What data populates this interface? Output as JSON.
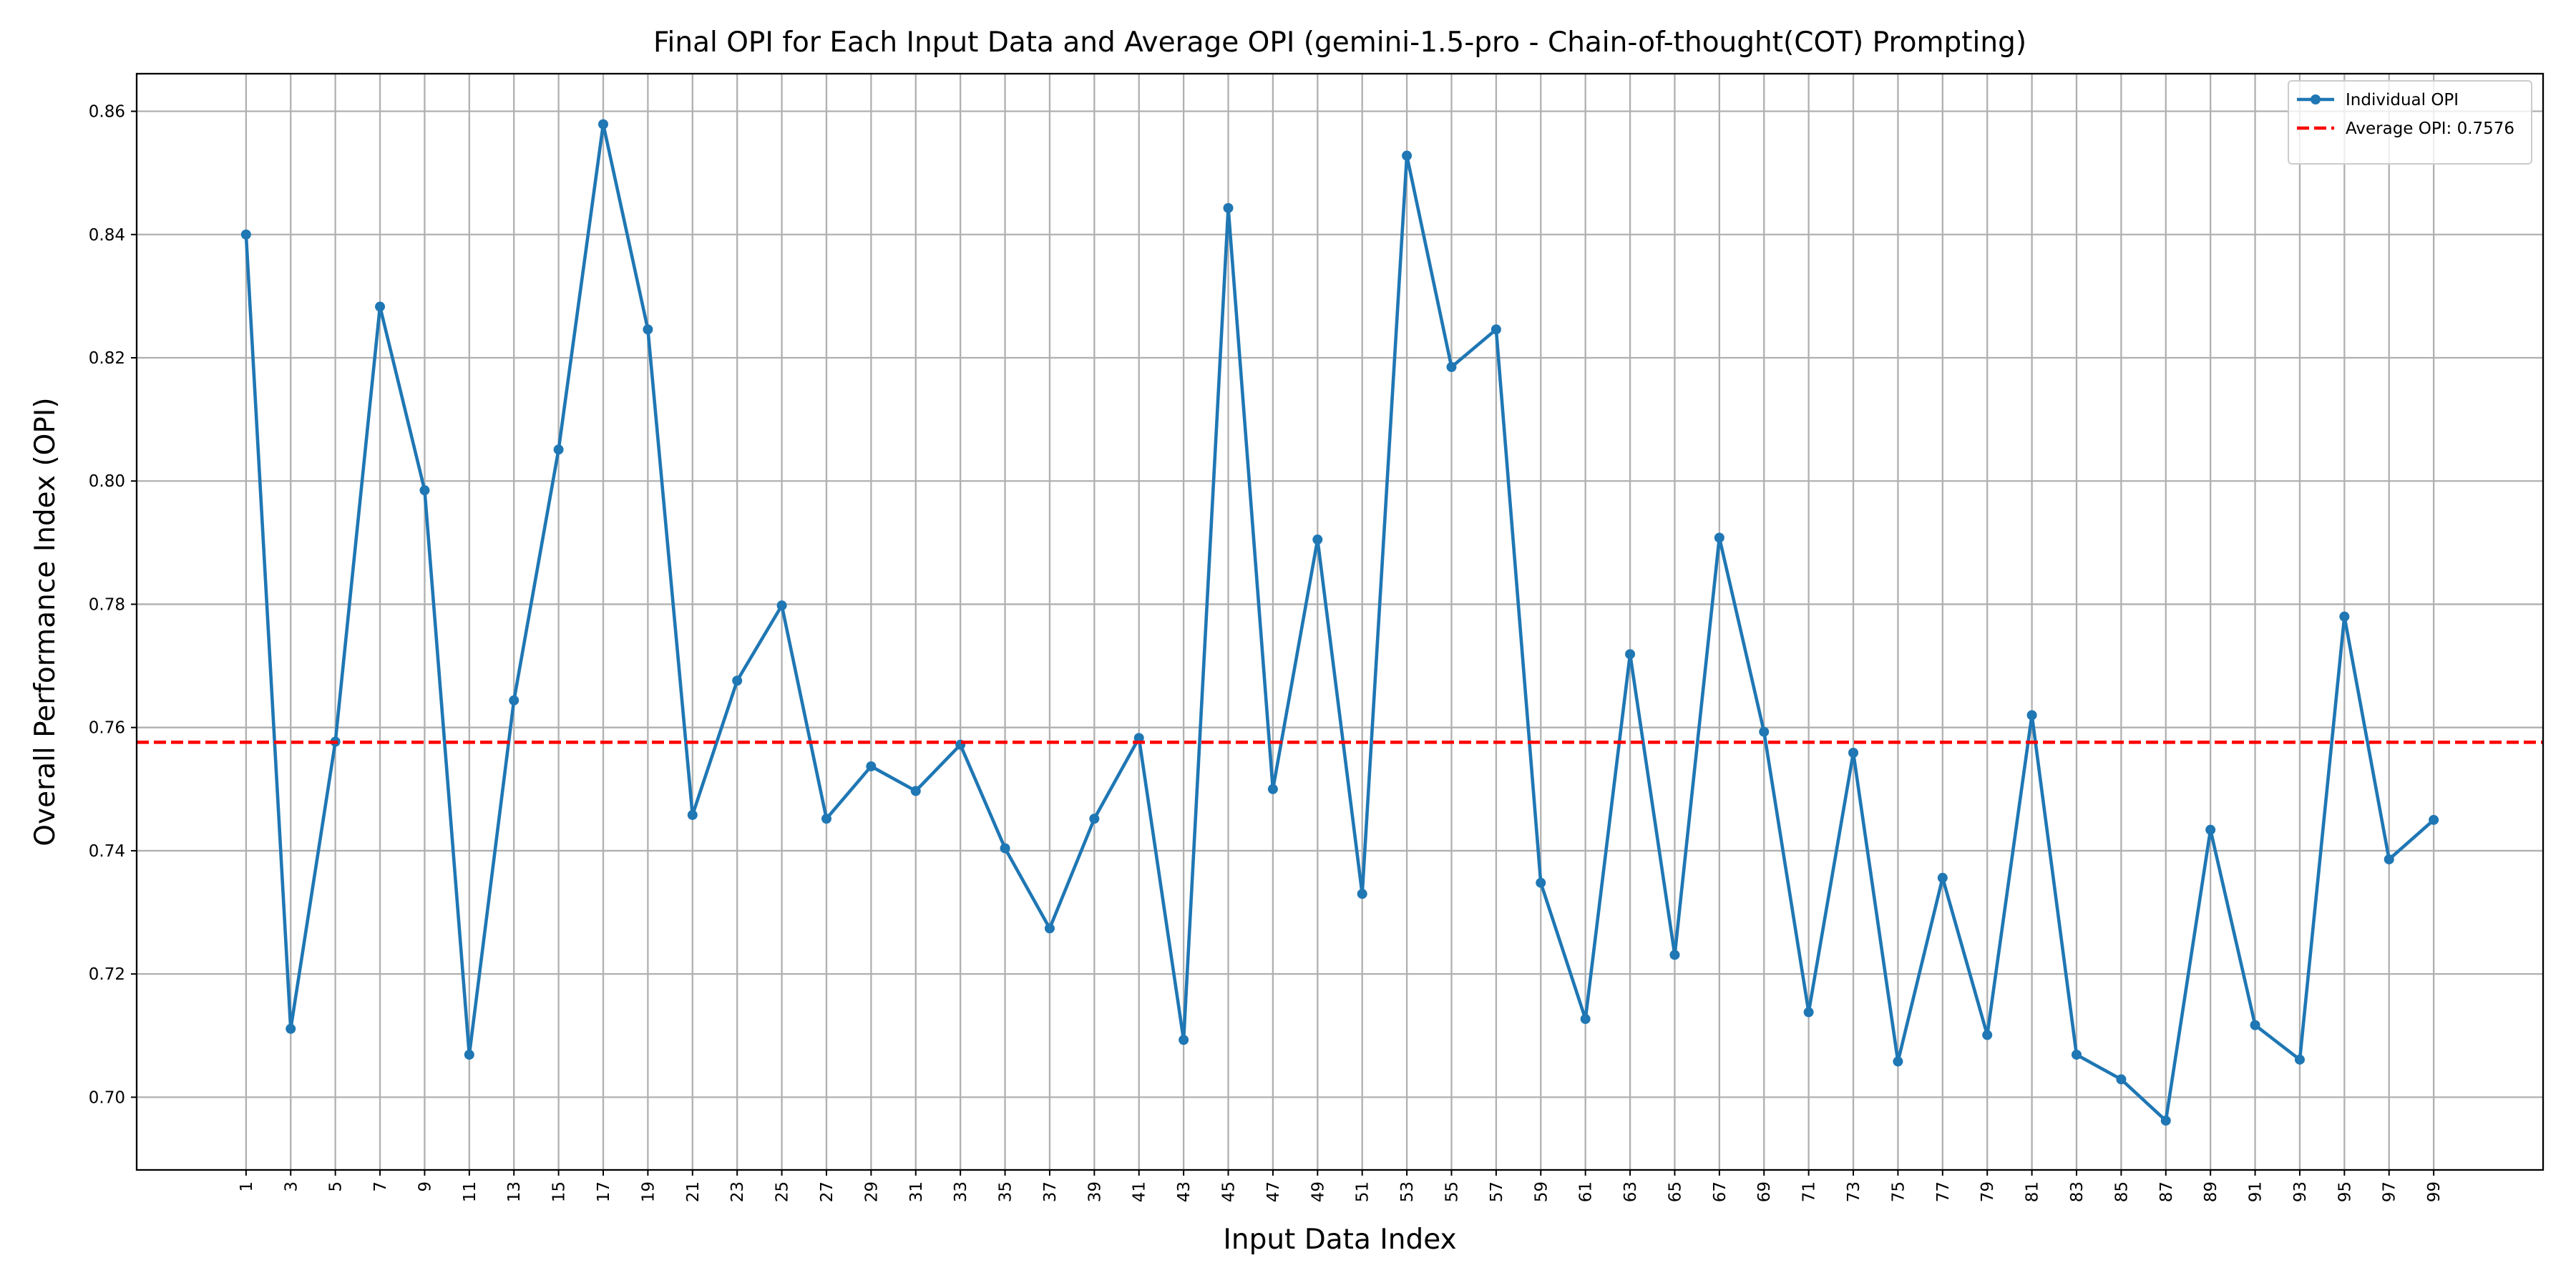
{
  "chart_data": {
    "type": "line",
    "title": "Final OPI for Each Input Data and Average OPI (gemini-1.5-pro - Chain-of-thought(COT) Prompting)",
    "xlabel": "Input Data Index",
    "ylabel": "Overall Performance Index (OPI)",
    "x": [
      1,
      3,
      5,
      7,
      9,
      11,
      13,
      15,
      17,
      19,
      21,
      23,
      25,
      27,
      29,
      31,
      33,
      35,
      37,
      39,
      41,
      43,
      45,
      47,
      49,
      51,
      53,
      55,
      57,
      59,
      61,
      63,
      65,
      67,
      69,
      71,
      73,
      75,
      77,
      79,
      81,
      83,
      85,
      87,
      89,
      91,
      93,
      95,
      97,
      99
    ],
    "series": [
      {
        "name": "Individual OPI",
        "color": "#1f77b4",
        "values": [
          0.84,
          0.7111,
          0.7577,
          0.8283,
          0.7985,
          0.7069,
          0.7644,
          0.8051,
          0.8579,
          0.8246,
          0.7458,
          0.7676,
          0.7798,
          0.7452,
          0.7537,
          0.7497,
          0.7572,
          0.7404,
          0.7274,
          0.7452,
          0.7583,
          0.7093,
          0.8443,
          0.75,
          0.7905,
          0.733,
          0.8528,
          0.8185,
          0.8246,
          0.7348,
          0.7127,
          0.7719,
          0.7231,
          0.7908,
          0.7593,
          0.7138,
          0.7559,
          0.7058,
          0.7356,
          0.7101,
          0.762,
          0.7069,
          0.7029,
          0.6962,
          0.7434,
          0.7117,
          0.7061,
          0.778,
          0.7386,
          0.745
        ]
      },
      {
        "name": "Average OPI: 0.7576",
        "color": "#ff0000",
        "value": 0.7576,
        "dashed": true
      }
    ],
    "xlim": [
      -3.9,
      103.9
    ],
    "xticks": [
      1,
      3,
      5,
      7,
      9,
      11,
      13,
      15,
      17,
      19,
      21,
      23,
      25,
      27,
      29,
      31,
      33,
      35,
      37,
      39,
      41,
      43,
      45,
      47,
      49,
      51,
      53,
      55,
      57,
      59,
      61,
      63,
      65,
      67,
      69,
      71,
      73,
      75,
      77,
      79,
      81,
      83,
      85,
      87,
      89,
      91,
      93,
      95,
      97,
      99
    ],
    "ylim": [
      0.6882,
      0.8661
    ],
    "yticks": [
      {
        "value": 0.7,
        "label": "0.70"
      },
      {
        "value": 0.72,
        "label": "0.72"
      },
      {
        "value": 0.74,
        "label": "0.74"
      },
      {
        "value": 0.76,
        "label": "0.76"
      },
      {
        "value": 0.78,
        "label": "0.78"
      },
      {
        "value": 0.8,
        "label": "0.80"
      },
      {
        "value": 0.82,
        "label": "0.82"
      },
      {
        "value": 0.84,
        "label": "0.84"
      },
      {
        "value": 0.86,
        "label": "0.86"
      }
    ],
    "grid": true,
    "legend": "upper right"
  }
}
